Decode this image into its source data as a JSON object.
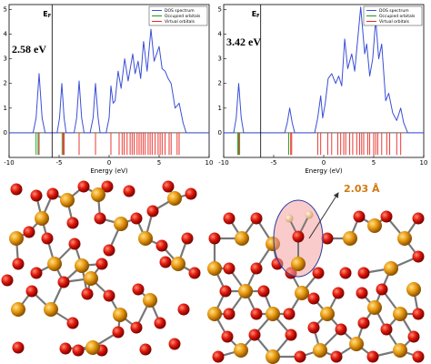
{
  "chart_data": [
    {
      "type": "line",
      "xlabel": "Energy (eV)",
      "xlim": [
        -10,
        10
      ],
      "ylim": [
        -1,
        5.2
      ],
      "xticks": [
        -10,
        -5,
        0,
        5,
        10
      ],
      "yticks": [
        0,
        1,
        2,
        3,
        4,
        5
      ],
      "fermi": {
        "x": -5.7,
        "label": "E",
        "subscript": "F"
      },
      "gap_label": "2.58 eV",
      "legend": "upper right",
      "series": [
        {
          "name": "DOS spectrum",
          "color": "#3a4fd6",
          "style": "line",
          "x": [
            -10,
            -7.6,
            -7.3,
            -7.0,
            -6.7,
            -6.4,
            -5.2,
            -4.95,
            -4.73,
            -4.5,
            -4.3,
            -3.5,
            -3.25,
            -3.0,
            -2.75,
            -2.5,
            -1.9,
            -1.6,
            -1.36,
            -1.1,
            -0.9,
            -0.3,
            0.0,
            0.18,
            0.4,
            0.6,
            0.9,
            1.2,
            1.55,
            1.9,
            2.36,
            2.6,
            2.9,
            3.15,
            3.45,
            3.8,
            4.18,
            4.5,
            5.0,
            5.3,
            5.6,
            5.9,
            6.2,
            6.6,
            7.0,
            7.4,
            7.7,
            10
          ],
          "values": [
            0,
            0,
            0.6,
            2.4,
            0.6,
            0,
            0,
            0.6,
            2.0,
            0.6,
            0,
            0,
            0.6,
            2.1,
            0.6,
            0,
            0,
            0.6,
            2.0,
            0.6,
            0,
            0,
            0.6,
            1.9,
            1.2,
            1.3,
            2.5,
            1.8,
            3.0,
            2.1,
            3.2,
            2.4,
            2.9,
            2.2,
            3.7,
            2.5,
            4.2,
            2.9,
            3.5,
            2.6,
            2.5,
            2.2,
            2.0,
            1.0,
            1.2,
            0.4,
            0,
            0
          ]
        },
        {
          "name": "Occupied orbitals",
          "color": "#1a9a1a",
          "style": "stick",
          "stick_to": -0.9,
          "x": [
            -7.3,
            -7.1,
            -4.7
          ]
        },
        {
          "name": "Virtual orbitals",
          "color": "#e8251f",
          "style": "stick",
          "stick_to": -0.9,
          "x": [
            -7.0,
            -4.6,
            -4.5,
            -3.0,
            -1.36,
            0.18,
            1.0,
            1.3,
            1.5,
            1.8,
            2.1,
            2.3,
            2.5,
            2.8,
            3.0,
            3.2,
            3.4,
            3.6,
            3.9,
            4.1,
            4.3,
            4.6,
            4.9,
            5.1,
            5.3,
            5.6,
            6.0,
            6.2,
            6.8,
            7.0
          ]
        }
      ]
    },
    {
      "type": "line",
      "xlabel": "Energy (eV)",
      "xlim": [
        -10,
        10
      ],
      "ylim": [
        -1,
        5.2
      ],
      "xticks": [
        -10,
        -5,
        0,
        5,
        10
      ],
      "yticks": [
        0,
        1,
        2,
        3,
        4,
        5
      ],
      "fermi": {
        "x": -6.3,
        "label": "E",
        "subscript": "F"
      },
      "gap_label": "3.42 eV",
      "legend": "upper right",
      "series": [
        {
          "name": "DOS spectrum",
          "color": "#3a4fd6",
          "style": "line",
          "x": [
            -10,
            -9.0,
            -8.75,
            -8.5,
            -8.25,
            -8.0,
            -3.9,
            -3.65,
            -3.4,
            -3.15,
            -2.9,
            -0.9,
            -0.6,
            -0.3,
            -0.1,
            0.15,
            0.45,
            0.8,
            1.2,
            1.5,
            1.8,
            2.1,
            2.4,
            2.8,
            3.1,
            3.7,
            4.1,
            4.3,
            4.6,
            4.9,
            5.2,
            5.5,
            5.8,
            6.2,
            6.5,
            6.9,
            7.3,
            7.7,
            8.0,
            8.4,
            10
          ],
          "values": [
            0,
            0,
            0.6,
            2.0,
            0.6,
            0,
            0,
            0.4,
            1.0,
            0.4,
            0,
            0,
            0.6,
            1.5,
            0.6,
            1.2,
            2.2,
            2.4,
            2.0,
            2.3,
            1.9,
            3.8,
            2.6,
            3.2,
            2.5,
            5.1,
            3.2,
            3.6,
            2.3,
            3.0,
            4.6,
            3.0,
            3.6,
            1.3,
            1.6,
            0.8,
            0.5,
            1.0,
            0.4,
            0,
            0
          ]
        },
        {
          "name": "Occupied orbitals",
          "color": "#1a9a1a",
          "style": "stick",
          "stick_to": -0.9,
          "x": [
            -8.6,
            -8.4,
            -3.5
          ]
        },
        {
          "name": "Virtual orbitals",
          "color": "#e8251f",
          "style": "stick",
          "stick_to": -0.9,
          "x": [
            -8.5,
            -3.3,
            -3.2,
            -0.6,
            -0.3,
            0.4,
            0.8,
            1.4,
            1.7,
            2.0,
            2.2,
            2.6,
            2.9,
            3.3,
            3.6,
            3.8,
            4.0,
            4.4,
            4.6,
            5.0,
            5.2,
            5.4,
            5.8,
            6.3,
            6.6,
            7.3,
            7.7
          ]
        }
      ]
    }
  ],
  "structure": {
    "bond_label": "2.03 Å"
  }
}
